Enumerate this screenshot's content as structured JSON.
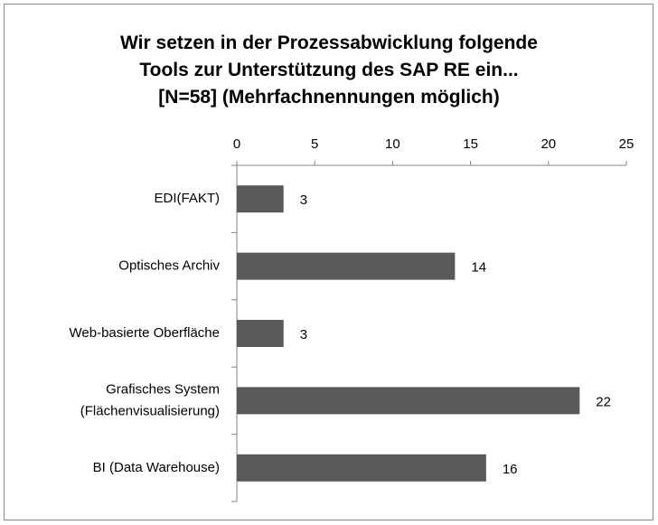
{
  "chart_data": {
    "type": "bar",
    "orientation": "horizontal",
    "title": "Wir setzen in der Prozessabwicklung folgende\nTools zur Unterstützung des SAP RE ein...\n[N=58] (Mehrfachnennungen möglich)",
    "categories": [
      "EDI(FAKT)",
      "Optisches Archiv",
      "Web-basierte Oberfläche",
      "Grafisches System\n(Flächenvisualisierung)",
      "BI (Data Warehouse)"
    ],
    "values": [
      3,
      14,
      3,
      22,
      16
    ],
    "color": "#595959",
    "xlim": [
      0,
      25
    ],
    "xticks": [
      0,
      5,
      10,
      15,
      20,
      25
    ],
    "grid": false
  }
}
